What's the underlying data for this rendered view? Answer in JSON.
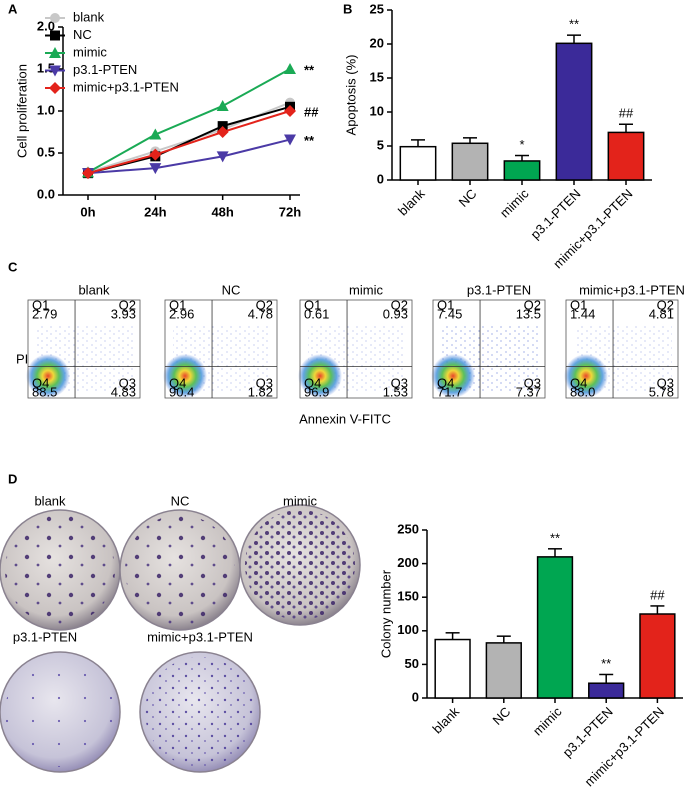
{
  "panel_labels": [
    "A",
    "B",
    "C",
    "D"
  ],
  "chart_data": [
    {
      "type": "line",
      "y_label": "Cell proliferation",
      "categories": [
        "0h",
        "24h",
        "48h",
        "72h"
      ],
      "ylim": [
        0,
        2
      ],
      "yticks": [
        {
          "value": 0,
          "label": "0.0"
        },
        0.5,
        {
          "value": 1,
          "label": "1.0"
        },
        1.5,
        {
          "value": 2,
          "label": "2.0"
        }
      ],
      "series": [
        {
          "name": "blank",
          "color": "#c8c8c8",
          "marker": "circle",
          "values": [
            0.27,
            0.52,
            0.78,
            1.1
          ]
        },
        {
          "name": "NC",
          "color": "#000000",
          "marker": "square",
          "values": [
            0.26,
            0.46,
            0.82,
            1.05
          ]
        },
        {
          "name": "mimic",
          "color": "#1aaa55",
          "marker": "triangle-up",
          "values": [
            0.27,
            0.72,
            1.06,
            1.5
          ],
          "annotation": "**"
        },
        {
          "name": "p3.1-PTEN",
          "color": "#4b3aa6",
          "marker": "triangle-down",
          "values": [
            0.26,
            0.32,
            0.46,
            0.66
          ],
          "annotation": "**"
        },
        {
          "name": "mimic+p3.1-PTEN",
          "color": "#e3231b",
          "marker": "diamond",
          "values": [
            0.26,
            0.48,
            0.75,
            1.0
          ],
          "annotation": "##"
        }
      ]
    },
    {
      "type": "bar",
      "y_label": "Apoptosis (%)",
      "categories": [
        "blank",
        "NC",
        "mimic",
        "p3.1-PTEN",
        "mimic+p3.1-PTEN"
      ],
      "values": [
        4.9,
        5.4,
        2.8,
        20.1,
        7.0
      ],
      "errors": [
        1.0,
        0.8,
        0.8,
        1.2,
        1.2
      ],
      "colors": [
        "#ffffff",
        "#b3b3b3",
        "#00a651",
        "#3b2a99",
        "#e3231b"
      ],
      "annotations": [
        null,
        null,
        "*",
        "**",
        "##"
      ],
      "ylim": [
        0,
        25
      ],
      "yticks": [
        0,
        5,
        10,
        15,
        20,
        25
      ]
    },
    {
      "type": "bar",
      "y_label": "Colony number",
      "categories": [
        "blank",
        "NC",
        "mimic",
        "p3.1-PTEN",
        "mimic+p3.1-PTEN"
      ],
      "values": [
        87,
        82,
        210,
        22,
        125
      ],
      "errors": [
        10,
        10,
        12,
        13,
        12
      ],
      "colors": [
        "#ffffff",
        "#b3b3b3",
        "#00a651",
        "#3b2a99",
        "#e3231b"
      ],
      "annotations": [
        null,
        null,
        "**",
        "**",
        "##"
      ],
      "ylim": [
        0,
        250
      ],
      "yticks": [
        0,
        50,
        100,
        150,
        200,
        250
      ]
    }
  ],
  "flow_cytometry": {
    "x_label": "Annexin V-FITC",
    "y_label": "PI",
    "plots": [
      {
        "title": "blank",
        "quadrants": [
          {
            "label": "Q1",
            "value": "2.79"
          },
          {
            "label": "Q2",
            "value": "3.93"
          },
          {
            "label": "Q4",
            "value": "88.5"
          },
          {
            "label": "Q3",
            "value": "4.83"
          }
        ]
      },
      {
        "title": "NC",
        "quadrants": [
          {
            "label": "Q1",
            "value": "2.96"
          },
          {
            "label": "Q2",
            "value": "4.78"
          },
          {
            "label": "Q4",
            "value": "90.4"
          },
          {
            "label": "Q3",
            "value": "1.82"
          }
        ]
      },
      {
        "title": "mimic",
        "quadrants": [
          {
            "label": "Q1",
            "value": "0.61"
          },
          {
            "label": "Q2",
            "value": "0.93"
          },
          {
            "label": "Q4",
            "value": "96.9"
          },
          {
            "label": "Q3",
            "value": "1.53"
          }
        ]
      },
      {
        "title": "p3.1-PTEN",
        "quadrants": [
          {
            "label": "Q1",
            "value": "7.45"
          },
          {
            "label": "Q2",
            "value": "13.5"
          },
          {
            "label": "Q4",
            "value": "71.7"
          },
          {
            "label": "Q3",
            "value": "7.37"
          }
        ]
      },
      {
        "title": "mimic+p3.1-PTEN",
        "quadrants": [
          {
            "label": "Q1",
            "value": "1.44"
          },
          {
            "label": "Q2",
            "value": "4.81"
          },
          {
            "label": "Q4",
            "value": "88.0"
          },
          {
            "label": "Q3",
            "value": "5.78"
          }
        ]
      }
    ]
  },
  "colony_images": [
    "blank",
    "NC",
    "mimic",
    "p3.1-PTEN",
    "mimic+p3.1-PTEN"
  ]
}
